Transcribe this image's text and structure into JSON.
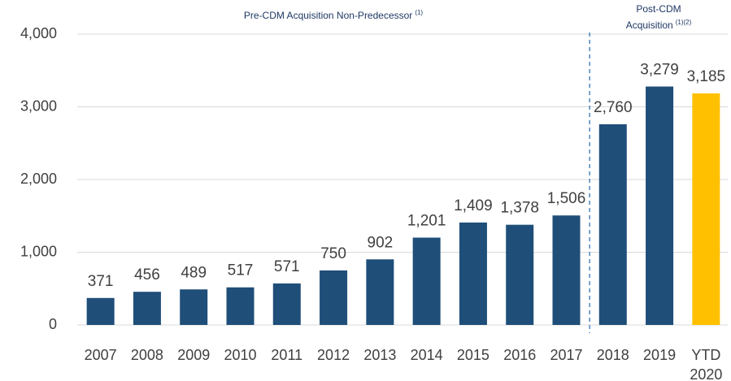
{
  "chart_data": {
    "type": "bar",
    "annotations": [
      {
        "lines": [
          "Pre-CDM Acquisition Non-Predecessor"
        ],
        "sup": "(1)"
      },
      {
        "lines": [
          "Post-CDM",
          "Acquisition"
        ],
        "sup": "(1)(2)"
      }
    ],
    "categories": [
      "2007",
      "2008",
      "2009",
      "2010",
      "2011",
      "2012",
      "2013",
      "2014",
      "2015",
      "2016",
      "2017",
      "2018",
      "2019",
      "YTD 2020"
    ],
    "values": [
      371,
      456,
      489,
      517,
      571,
      750,
      902,
      1201,
      1409,
      1378,
      1506,
      2760,
      3279,
      3185
    ],
    "value_labels": [
      "371",
      "456",
      "489",
      "517",
      "571",
      "750",
      "902",
      "1,201",
      "1,409",
      "1,378",
      "1,506",
      "2,760",
      "3,279",
      "3,185"
    ],
    "colors": [
      "#1f4e79",
      "#1f4e79",
      "#1f4e79",
      "#1f4e79",
      "#1f4e79",
      "#1f4e79",
      "#1f4e79",
      "#1f4e79",
      "#1f4e79",
      "#1f4e79",
      "#1f4e79",
      "#1f4e79",
      "#1f4e79",
      "#ffc000"
    ],
    "ylim": [
      0,
      4000
    ],
    "yticks": [
      0,
      {
        "value": 1000,
        "label": "1,000"
      },
      {
        "value": 2000,
        "label": "2,000"
      },
      {
        "value": 3000,
        "label": "3,000"
      },
      {
        "value": 4000,
        "label": "4,000"
      }
    ],
    "grid": true
  }
}
